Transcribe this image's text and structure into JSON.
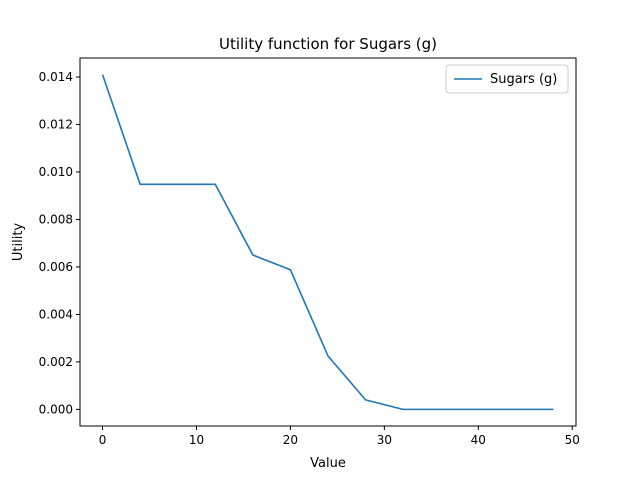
{
  "chart_data": {
    "type": "line",
    "title": "Utility function for Sugars (g)",
    "xlabel": "Value",
    "ylabel": "Utility",
    "xlim": [
      -2.4,
      50.4
    ],
    "ylim": [
      -0.0007,
      0.0148
    ],
    "xticks": [
      0,
      10,
      20,
      30,
      40,
      50
    ],
    "xtick_labels": [
      "0",
      "10",
      "20",
      "30",
      "40",
      "50"
    ],
    "yticks": [
      0.0,
      0.002,
      0.004,
      0.006,
      0.008,
      0.01,
      0.012,
      0.014
    ],
    "ytick_labels": [
      "0.000",
      "0.002",
      "0.004",
      "0.006",
      "0.008",
      "0.010",
      "0.012",
      "0.014"
    ],
    "grid": false,
    "legend_position": "top-right",
    "series": [
      {
        "name": "Sugars (g)",
        "color": "#1f77b4",
        "x": [
          0,
          4,
          8,
          12,
          16,
          20,
          24,
          28,
          32,
          36,
          40,
          44,
          48
        ],
        "y": [
          0.0141,
          0.00948,
          0.00948,
          0.00948,
          0.0065,
          0.00588,
          0.00225,
          0.0004,
          0.0,
          0.0,
          0.0,
          0.0,
          0.0
        ]
      }
    ]
  }
}
